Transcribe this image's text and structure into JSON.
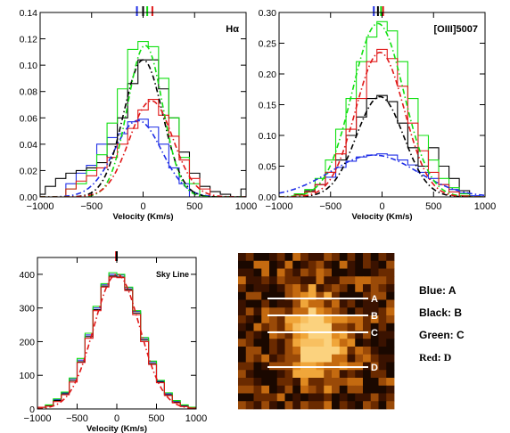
{
  "colors": {
    "blue": "#1f2ee6",
    "black": "#000000",
    "green": "#11e011",
    "red": "#e01818"
  },
  "chart_data": [
    {
      "type": "line",
      "annotation": "Hα",
      "xlabel": "Velocity (Km/s)",
      "xlim": [
        -1000,
        1000
      ],
      "ylim": [
        0,
        0.14
      ],
      "xticks": [
        -1000,
        -500,
        0,
        500,
        1000
      ],
      "yticks": [
        0.0,
        0.02,
        0.04,
        0.06,
        0.08,
        0.1,
        0.12,
        0.14
      ],
      "ytick_labels": [
        "0.00",
        "0.02",
        "0.04",
        "0.06",
        "0.08",
        "0.10",
        "0.12",
        "0.14"
      ],
      "bin_edges": [
        -1050,
        -950,
        -850,
        -750,
        -650,
        -550,
        -450,
        -350,
        -250,
        -150,
        -50,
        50,
        150,
        250,
        350,
        450,
        550,
        650,
        750,
        850,
        950,
        1050
      ],
      "series": [
        {
          "color": "blue",
          "values": [
            0.0,
            0.0,
            0.0,
            0.01,
            0.018,
            0.024,
            0.04,
            0.045,
            0.048,
            0.057,
            0.059,
            0.053,
            0.04,
            0.022,
            0.01,
            0.0,
            0.0,
            0.0,
            0.0,
            0.0,
            0.0
          ]
        },
        {
          "color": "black",
          "values": [
            0.002,
            0.008,
            0.014,
            0.018,
            0.02,
            0.022,
            0.026,
            0.04,
            0.06,
            0.086,
            0.104,
            0.104,
            0.082,
            0.06,
            0.034,
            0.018,
            0.008,
            0.004,
            0.002,
            0.0,
            0.006
          ]
        },
        {
          "color": "green",
          "values": [
            0.0,
            0.0,
            0.0,
            0.006,
            0.01,
            0.02,
            0.032,
            0.056,
            0.082,
            0.112,
            0.118,
            0.114,
            0.09,
            0.06,
            0.03,
            0.01,
            0.0,
            0.0,
            0.0,
            0.0,
            0.0
          ]
        },
        {
          "color": "red",
          "values": [
            0.0,
            0.0,
            0.0,
            0.006,
            0.012,
            0.016,
            0.022,
            0.03,
            0.04,
            0.052,
            0.066,
            0.074,
            0.062,
            0.046,
            0.028,
            0.014,
            0.006,
            0.0,
            0.0,
            0.0,
            0.0
          ]
        }
      ],
      "fits": [
        {
          "color": "blue",
          "peak": 0.058,
          "center": -50,
          "sigma": 230
        },
        {
          "color": "black",
          "peak": 0.104,
          "center": 0,
          "sigma": 190
        },
        {
          "color": "green",
          "peak": 0.115,
          "center": 20,
          "sigma": 170
        },
        {
          "color": "red",
          "peak": 0.073,
          "center": 80,
          "sigma": 210
        }
      ],
      "top_markers": [
        {
          "color": "blue",
          "v": -60
        },
        {
          "color": "black",
          "v": 0
        },
        {
          "color": "green",
          "v": 40
        },
        {
          "color": "red",
          "v": 90
        }
      ]
    },
    {
      "type": "line",
      "annotation": "[OIII]5007",
      "xlabel": "Velocity (Km/s)",
      "xlim": [
        -1000,
        1000
      ],
      "ylim": [
        0,
        0.3
      ],
      "xticks": [
        -1000,
        -500,
        0,
        500,
        1000
      ],
      "yticks": [
        0.0,
        0.05,
        0.1,
        0.15,
        0.2,
        0.25,
        0.3
      ],
      "ytick_labels": [
        "0.00",
        "0.05",
        "0.10",
        "0.15",
        "0.20",
        "0.25",
        "0.30"
      ],
      "bin_edges": [
        -950,
        -850,
        -750,
        -650,
        -550,
        -450,
        -350,
        -250,
        -150,
        -50,
        50,
        150,
        250,
        350,
        450,
        550,
        650,
        750,
        850,
        950
      ],
      "series": [
        {
          "color": "blue",
          "values": [
            0.0,
            0.005,
            0.01,
            0.02,
            0.032,
            0.048,
            0.058,
            0.065,
            0.068,
            0.07,
            0.068,
            0.06,
            0.052,
            0.04,
            0.03,
            0.02,
            0.012,
            0.006,
            0.002
          ]
        },
        {
          "color": "black",
          "values": [
            0.0,
            0.004,
            0.01,
            0.02,
            0.04,
            0.06,
            0.1,
            0.13,
            0.16,
            0.165,
            0.155,
            0.12,
            0.08,
            0.05,
            0.08,
            0.05,
            0.03,
            0.01,
            0.0
          ]
        },
        {
          "color": "green",
          "values": [
            0.0,
            0.005,
            0.012,
            0.03,
            0.06,
            0.11,
            0.16,
            0.22,
            0.26,
            0.285,
            0.27,
            0.22,
            0.16,
            0.1,
            0.06,
            0.03,
            0.015,
            0.005,
            0.0
          ]
        },
        {
          "color": "red",
          "values": [
            0.0,
            0.003,
            0.008,
            0.02,
            0.04,
            0.07,
            0.11,
            0.16,
            0.22,
            0.24,
            0.225,
            0.18,
            0.12,
            0.075,
            0.04,
            0.02,
            0.008,
            0.002,
            0.0
          ]
        }
      ],
      "fits": [
        {
          "color": "blue",
          "peak": 0.068,
          "center": -80,
          "sigma": 420
        },
        {
          "color": "black",
          "peak": 0.163,
          "center": -20,
          "sigma": 230
        },
        {
          "color": "green",
          "peak": 0.282,
          "center": -40,
          "sigma": 250
        },
        {
          "color": "red",
          "peak": 0.235,
          "center": -20,
          "sigma": 235
        }
      ],
      "top_markers": [
        {
          "color": "blue",
          "v": -80
        },
        {
          "color": "black",
          "v": -40
        },
        {
          "color": "green",
          "v": -10
        },
        {
          "color": "red",
          "v": 10
        }
      ]
    },
    {
      "type": "line",
      "annotation": "Sky Line",
      "xlabel": "Velocity (Km/s)",
      "xlim": [
        -1000,
        1000
      ],
      "ylim": [
        0,
        450
      ],
      "xticks": [
        -1000,
        -500,
        0,
        500,
        1000
      ],
      "yticks": [
        0,
        100,
        200,
        300,
        400
      ],
      "ytick_labels": [
        "0",
        "100",
        "200",
        "300",
        "400"
      ],
      "bin_edges": [
        -1000,
        -900,
        -800,
        -700,
        -600,
        -500,
        -400,
        -300,
        -200,
        -100,
        0,
        100,
        200,
        300,
        400,
        500,
        600,
        700,
        800,
        900,
        1000
      ],
      "series": [
        {
          "color": "blue",
          "values": [
            5,
            10,
            28,
            48,
            90,
            145,
            220,
            300,
            370,
            400,
            398,
            360,
            290,
            210,
            140,
            82,
            45,
            22,
            10,
            5
          ]
        },
        {
          "color": "black",
          "values": [
            5,
            10,
            25,
            45,
            85,
            140,
            215,
            295,
            365,
            395,
            392,
            355,
            285,
            205,
            135,
            80,
            42,
            20,
            8,
            3
          ]
        },
        {
          "color": "green",
          "values": [
            5,
            12,
            30,
            50,
            92,
            150,
            225,
            305,
            372,
            405,
            400,
            362,
            292,
            212,
            142,
            85,
            48,
            25,
            12,
            5
          ]
        },
        {
          "color": "red",
          "values": [
            5,
            8,
            22,
            42,
            80,
            138,
            210,
            292,
            362,
            392,
            390,
            352,
            280,
            200,
            132,
            78,
            40,
            18,
            7,
            3
          ]
        }
      ],
      "fits": [
        {
          "color": "red",
          "peak": 400,
          "center": 0,
          "sigma": 290
        }
      ],
      "top_markers": [
        {
          "color": "red",
          "v": -10
        },
        {
          "color": "black",
          "v": 0
        }
      ]
    }
  ],
  "image_panel": {
    "slit_labels": [
      "A",
      "B",
      "C",
      "D"
    ]
  },
  "legend": [
    {
      "label": "Blue: A"
    },
    {
      "label": "Black: B"
    },
    {
      "label": "Green: C"
    },
    {
      "label": "Red: D"
    }
  ]
}
